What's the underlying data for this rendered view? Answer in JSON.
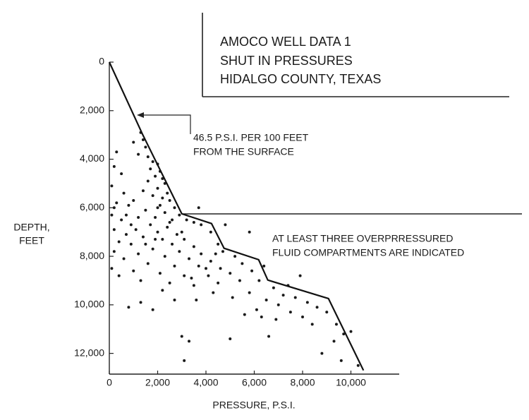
{
  "chart_data": {
    "type": "scatter",
    "title": [
      "AMOCO WELL DATA 1",
      "SHUT IN PRESSURES",
      "HIDALGO COUNTY, TEXAS"
    ],
    "x_label": "PRESSURE, P.S.I.",
    "y_label": [
      "DEPTH,",
      "FEET"
    ],
    "annotations": [
      {
        "text": [
          "46.5 P.S.I. PER 100 FEET",
          "FROM THE SURFACE"
        ]
      },
      {
        "text": [
          "AT LEAST THREE OVERPRRESSURED",
          "FLUID COMPARTMENTS ARE INDICATED"
        ]
      }
    ],
    "xlim": [
      0,
      12000
    ],
    "ylim": [
      0,
      13000
    ],
    "y_inverted": true,
    "xticks": [
      0,
      {
        "value": 2000,
        "label": "2,000"
      },
      {
        "value": 4000,
        "label": "4,000"
      },
      {
        "value": 6000,
        "label": "6,000"
      },
      {
        "value": 8000,
        "label": "8,000"
      },
      {
        "value": 10000,
        "label": "10,000"
      }
    ],
    "yticks": [
      0,
      {
        "value": 2000,
        "label": "2,000"
      },
      {
        "value": 4000,
        "label": "4,000"
      },
      {
        "value": 6000,
        "label": "6,000"
      },
      {
        "value": 8000,
        "label": "8,000"
      },
      {
        "value": 10000,
        "label": "10,000"
      },
      {
        "value": 12000,
        "label": "12,000"
      }
    ],
    "series": [
      {
        "type": "scatter",
        "color": "#1a1a1a",
        "x": [
          1300,
          1400,
          1000,
          1500,
          1200,
          1600,
          1800,
          2000,
          1700,
          2100,
          1900,
          2200,
          1600,
          2300,
          2000,
          2400,
          1800,
          2200,
          2500,
          2100,
          2700,
          1500,
          2300,
          2900,
          1900,
          2600,
          3200,
          1700,
          2400,
          3500,
          2000,
          2800,
          3800,
          1400,
          2200,
          3100,
          4200,
          2600,
          3500,
          4500,
          1800,
          2900,
          3800,
          4700,
          2300,
          3300,
          4200,
          5200,
          1600,
          2700,
          3700,
          4600,
          5500,
          2100,
          3100,
          4100,
          5000,
          5900,
          1300,
          2500,
          3500,
          4500,
          5400,
          6200,
          6800,
          5800,
          7200,
          6500,
          7700,
          8200,
          7000,
          8600,
          7500,
          8000,
          9000,
          8400,
          6300,
          9400,
          5600,
          9700,
          9300,
          10000,
          8800,
          9600,
          10300,
          3000,
          3300,
          3100,
          5000,
          6600,
          300,
          200,
          500,
          100,
          600,
          300,
          800,
          100,
          500,
          900,
          200,
          700,
          1100,
          400,
          900,
          200,
          1200,
          600,
          100,
          400,
          1000,
          800,
          1300,
          1800,
          200,
          700,
          1000,
          1400,
          1200,
          1500,
          1900,
          2200,
          2700,
          3600,
          4300,
          5100,
          6100,
          6900,
          7400,
          7900,
          6400,
          3700,
          5800,
          4800,
          4000,
          3400,
          2000,
          2500,
          3000,
          4400
        ],
        "values": [
          2900,
          3200,
          3300,
          3500,
          3800,
          3900,
          4100,
          4200,
          4400,
          4500,
          4700,
          4800,
          4900,
          5000,
          5200,
          5400,
          5500,
          5600,
          5700,
          5900,
          6000,
          6100,
          6200,
          6300,
          6400,
          6500,
          6500,
          6700,
          6800,
          6600,
          7000,
          7100,
          6700,
          7200,
          7300,
          7300,
          7000,
          7500,
          7600,
          7500,
          7700,
          7800,
          7900,
          7800,
          8000,
          8100,
          8200,
          8000,
          8300,
          8400,
          8400,
          8500,
          8300,
          8700,
          8800,
          8800,
          8700,
          8600,
          9000,
          9100,
          9200,
          9100,
          9000,
          9000,
          9300,
          9500,
          9600,
          9800,
          9700,
          9900,
          10000,
          10100,
          10300,
          10500,
          10300,
          10800,
          10500,
          10800,
          10400,
          11200,
          11500,
          11100,
          12000,
          12300,
          12500,
          11300,
          11500,
          12300,
          11400,
          11300,
          3700,
          4300,
          4600,
          5100,
          5400,
          5800,
          5900,
          6300,
          6500,
          6700,
          6900,
          7100,
          6900,
          7400,
          7500,
          7800,
          7900,
          8100,
          8500,
          8800,
          8600,
          10100,
          9900,
          10200,
          6000,
          6300,
          5700,
          5300,
          6400,
          7500,
          7300,
          9400,
          9800,
          9800,
          9500,
          9700,
          10200,
          10600,
          9200,
          8800,
          8400,
          6000,
          7000,
          6700,
          8500,
          8900,
          6000,
          6600,
          7000,
          7900
        ]
      },
      {
        "type": "line",
        "color": "#111111",
        "x": [
          0,
          1370,
          3000,
          4230,
          4750,
          6180,
          6560,
          9070,
          10520
        ],
        "values": [
          0,
          2965,
          6250,
          6650,
          7670,
          8140,
          8980,
          9740,
          12700
        ]
      }
    ]
  }
}
